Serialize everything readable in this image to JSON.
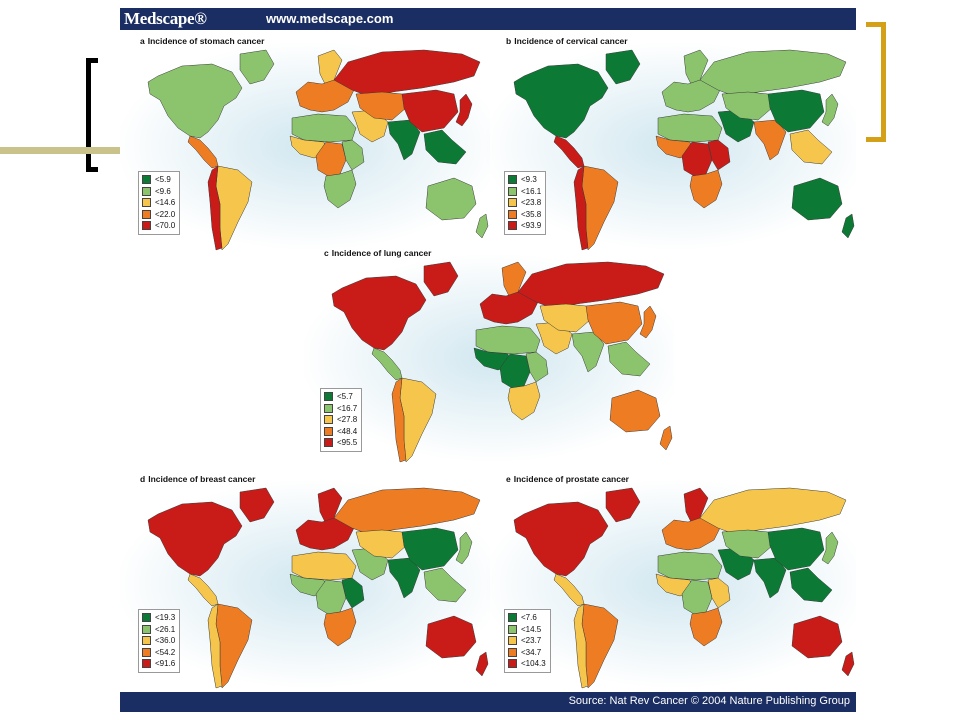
{
  "header": {
    "brand": "Medscape®",
    "url": "www.medscape.com"
  },
  "footer": {
    "source": "Source: Nat Rev Cancer © 2004 Nature Publishing Group"
  },
  "colors": {
    "dark_green": "#0c7a35",
    "light_green": "#8cc46e",
    "yellow": "#f6c64c",
    "orange": "#ee7c22",
    "red": "#c91b18",
    "ocean_glow": "#cfe6ef",
    "header_bar": "#1b2e63",
    "left_bracket": "#000000",
    "right_bracket": "#d4a017",
    "accent_line": "#c9c28a"
  },
  "legend_color_keys": [
    "dark_green",
    "light_green",
    "yellow",
    "orange",
    "red"
  ],
  "panels": [
    {
      "id": "stomach",
      "letter": "a",
      "title": "Incidence of stomach cancer",
      "legend": [
        "<5.9",
        "<9.6",
        "<14.6",
        "<22.0",
        "<70.0"
      ],
      "regions": {
        "north_america": 1,
        "greenland": 1,
        "central_america": 3,
        "south_america": 2,
        "andes": 4,
        "europe": 3,
        "scandinavia": 2,
        "north_africa": 1,
        "west_africa": 2,
        "central_africa": 3,
        "east_africa": 1,
        "southern_africa": 1,
        "middle_east": 2,
        "russia": 4,
        "central_asia": 3,
        "south_asia": 0,
        "china": 4,
        "japan": 4,
        "southeast_asia": 0,
        "australia": 1,
        "new_zealand": 1
      }
    },
    {
      "id": "cervical",
      "letter": "b",
      "title": "Incidence of cervical cancer",
      "legend": [
        "<9.3",
        "<16.1",
        "<23.8",
        "<35.8",
        "<93.9"
      ],
      "regions": {
        "north_america": 0,
        "greenland": 0,
        "central_america": 4,
        "south_america": 3,
        "andes": 4,
        "europe": 1,
        "scandinavia": 1,
        "north_africa": 1,
        "west_africa": 3,
        "central_africa": 4,
        "east_africa": 4,
        "southern_africa": 3,
        "middle_east": 0,
        "russia": 1,
        "central_asia": 1,
        "south_asia": 3,
        "china": 0,
        "japan": 1,
        "southeast_asia": 2,
        "australia": 0,
        "new_zealand": 0
      }
    },
    {
      "id": "lung",
      "letter": "c",
      "title": "Incidence of lung cancer",
      "legend": [
        "<5.7",
        "<16.7",
        "<27.8",
        "<48.4",
        "<95.5"
      ],
      "regions": {
        "north_america": 4,
        "greenland": 4,
        "central_america": 1,
        "south_america": 2,
        "andes": 3,
        "europe": 4,
        "scandinavia": 3,
        "north_africa": 1,
        "west_africa": 0,
        "central_africa": 0,
        "east_africa": 1,
        "southern_africa": 2,
        "middle_east": 2,
        "russia": 4,
        "central_asia": 2,
        "south_asia": 1,
        "china": 3,
        "japan": 3,
        "southeast_asia": 1,
        "australia": 3,
        "new_zealand": 3
      }
    },
    {
      "id": "breast",
      "letter": "d",
      "title": "Incidence of breast cancer",
      "legend": [
        "<19.3",
        "<26.1",
        "<36.0",
        "<54.2",
        "<91.6"
      ],
      "regions": {
        "north_america": 4,
        "greenland": 4,
        "central_america": 2,
        "south_america": 3,
        "andes": 2,
        "europe": 4,
        "scandinavia": 4,
        "north_africa": 2,
        "west_africa": 1,
        "central_africa": 1,
        "east_africa": 0,
        "southern_africa": 3,
        "middle_east": 1,
        "russia": 3,
        "central_asia": 2,
        "south_asia": 0,
        "china": 0,
        "japan": 1,
        "southeast_asia": 1,
        "australia": 4,
        "new_zealand": 4
      }
    },
    {
      "id": "prostate",
      "letter": "e",
      "title": "Incidence of prostate cancer",
      "legend": [
        "<7.6",
        "<14.5",
        "<23.7",
        "<34.7",
        "<104.3"
      ],
      "regions": {
        "north_america": 4,
        "greenland": 4,
        "central_america": 2,
        "south_america": 3,
        "andes": 2,
        "europe": 3,
        "scandinavia": 4,
        "north_africa": 1,
        "west_africa": 2,
        "central_africa": 1,
        "east_africa": 2,
        "southern_africa": 3,
        "middle_east": 0,
        "russia": 2,
        "central_asia": 1,
        "south_asia": 0,
        "china": 0,
        "japan": 1,
        "southeast_asia": 0,
        "australia": 4,
        "new_zealand": 4
      }
    }
  ]
}
